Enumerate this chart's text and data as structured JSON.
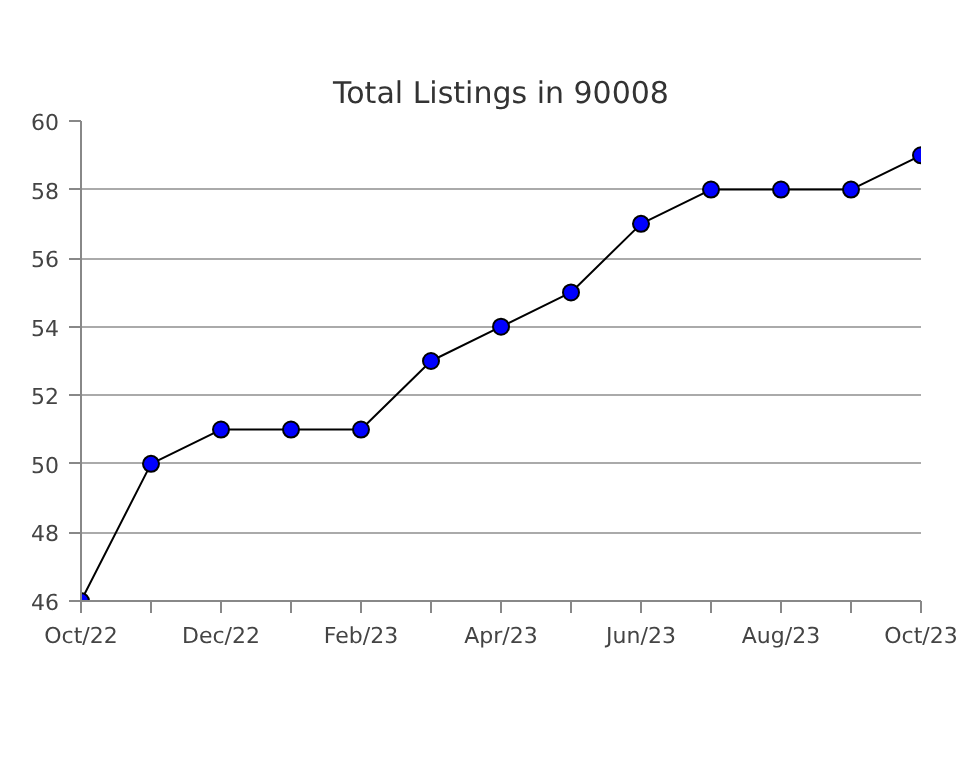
{
  "chart_data": {
    "type": "line",
    "title": "Total Listings in 90008",
    "categories": [
      "Oct/22",
      null,
      "Dec/22",
      null,
      "Feb/23",
      null,
      "Apr/23",
      null,
      "Jun/23",
      null,
      "Aug/23",
      null,
      "Oct/23"
    ],
    "series": [
      {
        "color": "#0000ff",
        "values": [
          46,
          50,
          51,
          51,
          51,
          53,
          54,
          55,
          57,
          58,
          58,
          58,
          59
        ]
      }
    ],
    "ylim": [
      46,
      60
    ],
    "yticks": [
      46,
      48,
      50,
      52,
      54,
      56,
      58,
      60
    ],
    "grid": "y",
    "marker": "circle",
    "line_style": "solid"
  }
}
